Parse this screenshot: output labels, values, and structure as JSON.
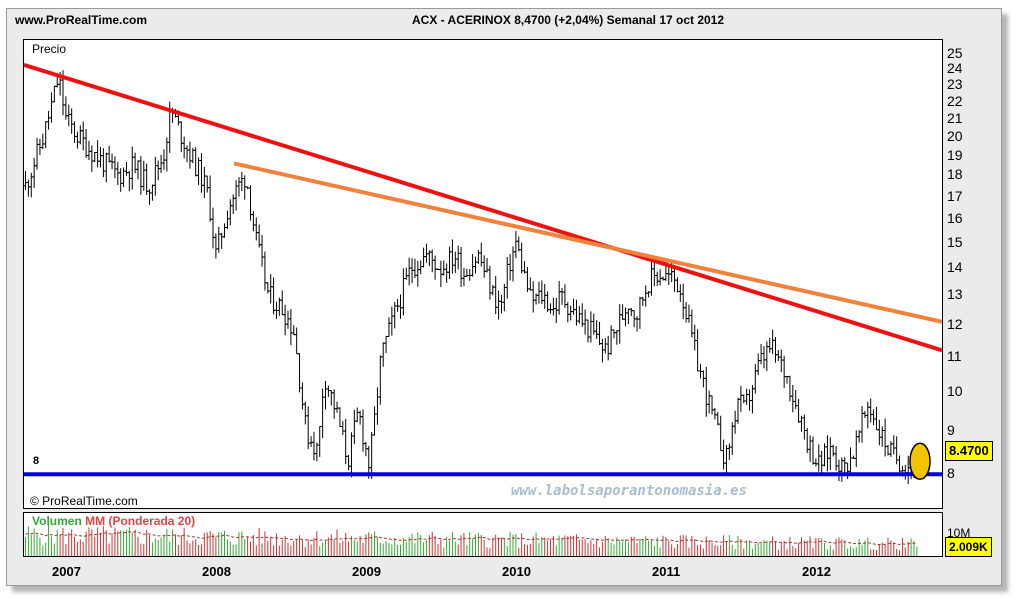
{
  "header": {
    "site": "www.ProRealTime.com",
    "instrument": "ACX - ACERINOX   8,4700 (+2,04%)   Semanal  17 oct 2012"
  },
  "price_pane": {
    "label": "Precio",
    "watermark": "www.labolsaporantonomasia.es",
    "copyright": "© ProRealTime.com",
    "last_price_badge": "8.4700",
    "support_label": "8"
  },
  "volume_pane": {
    "label_volume": "Volumen",
    "label_mm": "MM (Ponderada 20)",
    "axis_label": "10M",
    "last_volume_badge": "2.009K"
  },
  "colors": {
    "downtrend_line": "#ee1111",
    "secondary_trend_line": "#f0823c",
    "support_line": "#0000dd",
    "price_bars": "#000000",
    "volume_up": "#33aa33",
    "volume_down": "#cc3333",
    "volume_mm": "#aa3333",
    "marker": "#f5c400"
  },
  "chart_data": [
    {
      "type": "line",
      "title": "ACX - ACERINOX 8,4700 (+2,04%) Semanal 17 oct 2012",
      "subtitle": "Precio",
      "scale": "log",
      "ylim": [
        7.3,
        26
      ],
      "y_ticks": [
        8,
        9,
        10,
        11,
        12,
        13,
        14,
        15,
        16,
        17,
        18,
        19,
        20,
        21,
        22,
        23,
        24,
        25
      ],
      "x_ticks": [
        "2007",
        "2008",
        "2009",
        "2010",
        "2011",
        "2012"
      ],
      "x_tick_years": [
        2007.0,
        2008.0,
        2009.0,
        2010.0,
        2011.0,
        2012.0
      ],
      "xlim": [
        2006.82,
        2012.94
      ],
      "grid": false,
      "series": [
        {
          "type": "ohlc-weekly",
          "x": [
            2006.83,
            2006.95,
            2007.05,
            2007.1,
            2007.18,
            2007.3,
            2007.45,
            2007.55,
            2007.65,
            2007.75,
            2007.8,
            2007.9,
            2008.0,
            2008.05,
            2008.1,
            2008.18,
            2008.25,
            2008.3,
            2008.37,
            2008.45,
            2008.55,
            2008.62,
            2008.7,
            2008.78,
            2008.82,
            2008.9,
            2008.98,
            2009.05,
            2009.12,
            2009.15,
            2009.2,
            2009.3,
            2009.4,
            2009.5,
            2009.6,
            2009.7,
            2009.75,
            2009.85,
            2009.95,
            2010.0,
            2010.05,
            2010.1,
            2010.2,
            2010.28,
            2010.35,
            2010.4,
            2010.5,
            2010.6,
            2010.7,
            2010.8,
            2010.85,
            2010.9,
            2010.98,
            2011.05,
            2011.15,
            2011.2,
            2011.3,
            2011.4,
            2011.5,
            2011.58,
            2011.62,
            2011.68,
            2011.72,
            2011.8,
            2011.9,
            2012.0,
            2012.05,
            2012.12,
            2012.2,
            2012.28,
            2012.35,
            2012.45,
            2012.52,
            2012.6,
            2012.66,
            2012.72,
            2012.78
          ],
          "close": [
            17.5,
            20,
            23.5,
            21,
            20,
            19,
            18,
            18.5,
            17.5,
            19,
            21.5,
            19.5,
            18,
            17,
            14.5,
            16.5,
            17.5,
            18,
            15,
            13,
            12.5,
            11.8,
            9,
            8.5,
            10.5,
            9.5,
            8.3,
            9.5,
            8.2,
            9,
            11,
            12.5,
            14,
            14.5,
            14,
            14.5,
            13.8,
            14.5,
            13,
            12.6,
            14,
            15,
            12.8,
            13,
            12.5,
            13,
            12.3,
            11.8,
            11.2,
            12.2,
            12.8,
            12.3,
            13.5,
            13.8,
            13.6,
            13.2,
            11,
            9.5,
            8.3,
            9.8,
            9.5,
            10.2,
            10.8,
            11.3,
            10.5,
            9.3,
            8.7,
            8.2,
            8.6,
            8.1,
            8.5,
            9.7,
            9,
            8.47,
            8.3,
            8.2,
            8.47
          ]
        },
        {
          "name": "",
          "type": "trendline",
          "x": [
            2006.82,
            2012.94
          ],
          "y": [
            24.3,
            11.2
          ]
        },
        {
          "name": "",
          "type": "trendline",
          "x": [
            2008.22,
            2012.94
          ],
          "y": [
            18.6,
            12.1
          ]
        },
        {
          "name": "",
          "type": "hline",
          "y": 8
        }
      ]
    },
    {
      "type": "bar",
      "title": "Volumen MM (Ponderada 20)",
      "ylabel": "10M",
      "last_value": "2.009K",
      "grid": false
    }
  ]
}
